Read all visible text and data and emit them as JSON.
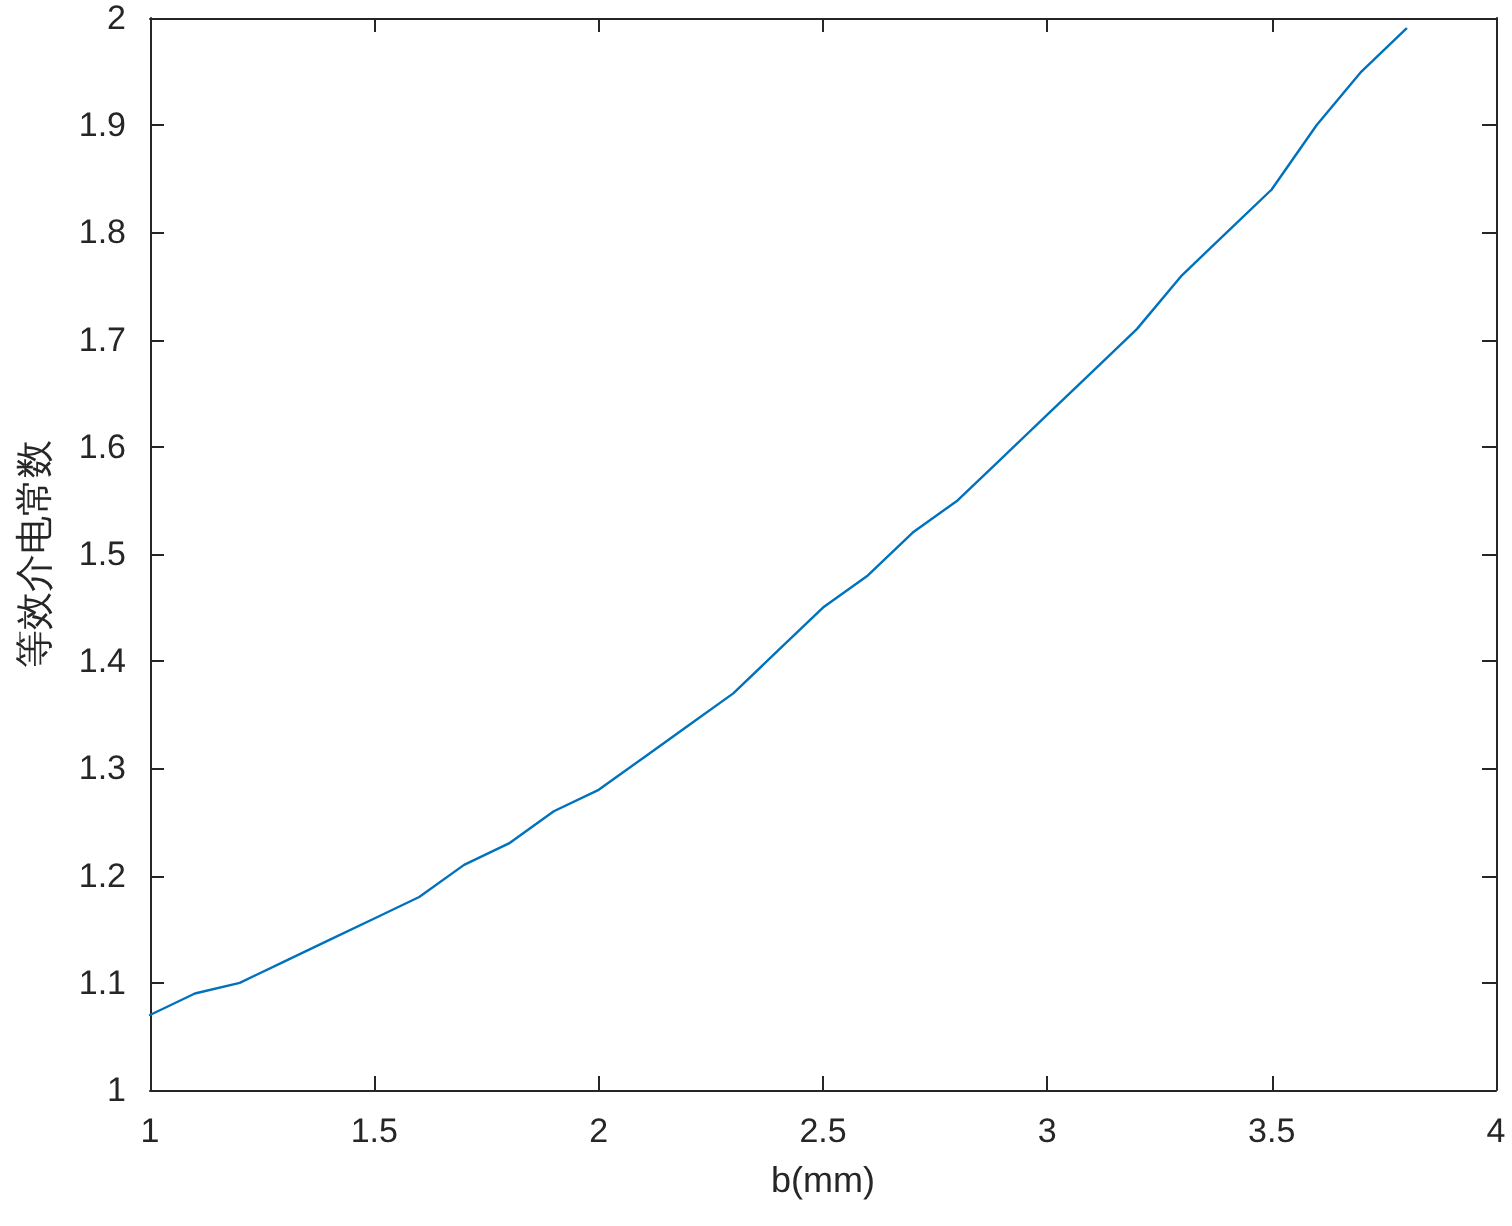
{
  "chart_data": {
    "type": "line",
    "xlabel": "b(mm)",
    "ylabel": "等效介电常数",
    "x": [
      1,
      1.1,
      1.2,
      1.3,
      1.4,
      1.5,
      1.6,
      1.7,
      1.8,
      1.9,
      2,
      2.1,
      2.2,
      2.3,
      2.4,
      2.5,
      2.6,
      2.7,
      2.8,
      2.9,
      3,
      3.1,
      3.2,
      3.3,
      3.4,
      3.5,
      3.6,
      3.7,
      3.8
    ],
    "series": [
      {
        "color": "#0072bd",
        "values": [
          1.07,
          1.09,
          1.1,
          1.12,
          1.14,
          1.16,
          1.18,
          1.21,
          1.23,
          1.26,
          1.28,
          1.31,
          1.34,
          1.37,
          1.41,
          1.45,
          1.48,
          1.52,
          1.55,
          1.59,
          1.63,
          1.67,
          1.71,
          1.76,
          1.8,
          1.84,
          1.9,
          1.95,
          1.99
        ]
      }
    ],
    "xlim": [
      1,
      4
    ],
    "ylim": [
      1,
      2
    ],
    "xticks": [
      1,
      1.5,
      2,
      2.5,
      3,
      3.5,
      4
    ],
    "yticks": [
      1,
      1.1,
      1.2,
      1.3,
      1.4,
      1.5,
      1.6,
      1.7,
      1.8,
      1.9,
      2
    ],
    "grid": false,
    "marker": "none",
    "line_style": "solid"
  }
}
